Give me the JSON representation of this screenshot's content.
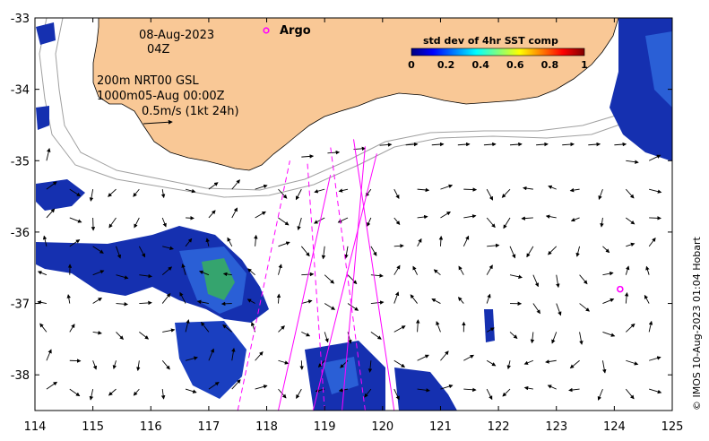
{
  "map": {
    "lon_range": [
      114,
      125
    ],
    "lat_range": [
      -38.5,
      -33
    ],
    "lon_ticks": [
      "114",
      "115",
      "116",
      "117",
      "118",
      "119",
      "120",
      "121",
      "122",
      "123",
      "124",
      "125"
    ],
    "lat_ticks": [
      "-33",
      "-34",
      "-35",
      "-36",
      "-37",
      "-38"
    ],
    "land_color": "#f9c896",
    "ocean_color": "#ffffff"
  },
  "info": {
    "date": "08-Aug-2023",
    "time": "04Z",
    "line3": "200m  NRT00 GSL",
    "line4": "1000m05-Aug 00:00Z",
    "scale_label": "0.5m/s (1kt 24h)"
  },
  "legend": {
    "argo_label": "Argo",
    "argo_color": "#ff00ff"
  },
  "colorbar": {
    "title": "std dev of 4hr SST comp",
    "ticks": [
      "0",
      "0.2",
      "0.4",
      "0.6",
      "0.8",
      "1"
    ],
    "colormap": "jet"
  },
  "credit": "© IMOS 10-Aug-2023 01:04 Hobart",
  "argo_float": {
    "lon": 124.1,
    "lat": -36.8
  },
  "tracks": [
    {
      "lon1": 118.2,
      "lat1": -38.5,
      "lon2": 119.1,
      "lat2": -35.2
    },
    {
      "lon1": 119.0,
      "lat1": -38.5,
      "lon2": 118.7,
      "lat2": -35.0
    },
    {
      "lon1": 119.3,
      "lat1": -38.5,
      "lon2": 119.7,
      "lat2": -34.8
    },
    {
      "lon1": 119.7,
      "lat1": -38.5,
      "lon2": 119.1,
      "lat2": -34.8
    },
    {
      "lon1": 118.8,
      "lat1": -38.5,
      "lon2": 119.9,
      "lat2": -34.9
    },
    {
      "lon1": 117.5,
      "lat1": -38.5,
      "lon2": 118.4,
      "lat2": -35.0
    },
    {
      "lon1": 120.2,
      "lat1": -38.5,
      "lon2": 119.5,
      "lat2": -34.7
    }
  ]
}
